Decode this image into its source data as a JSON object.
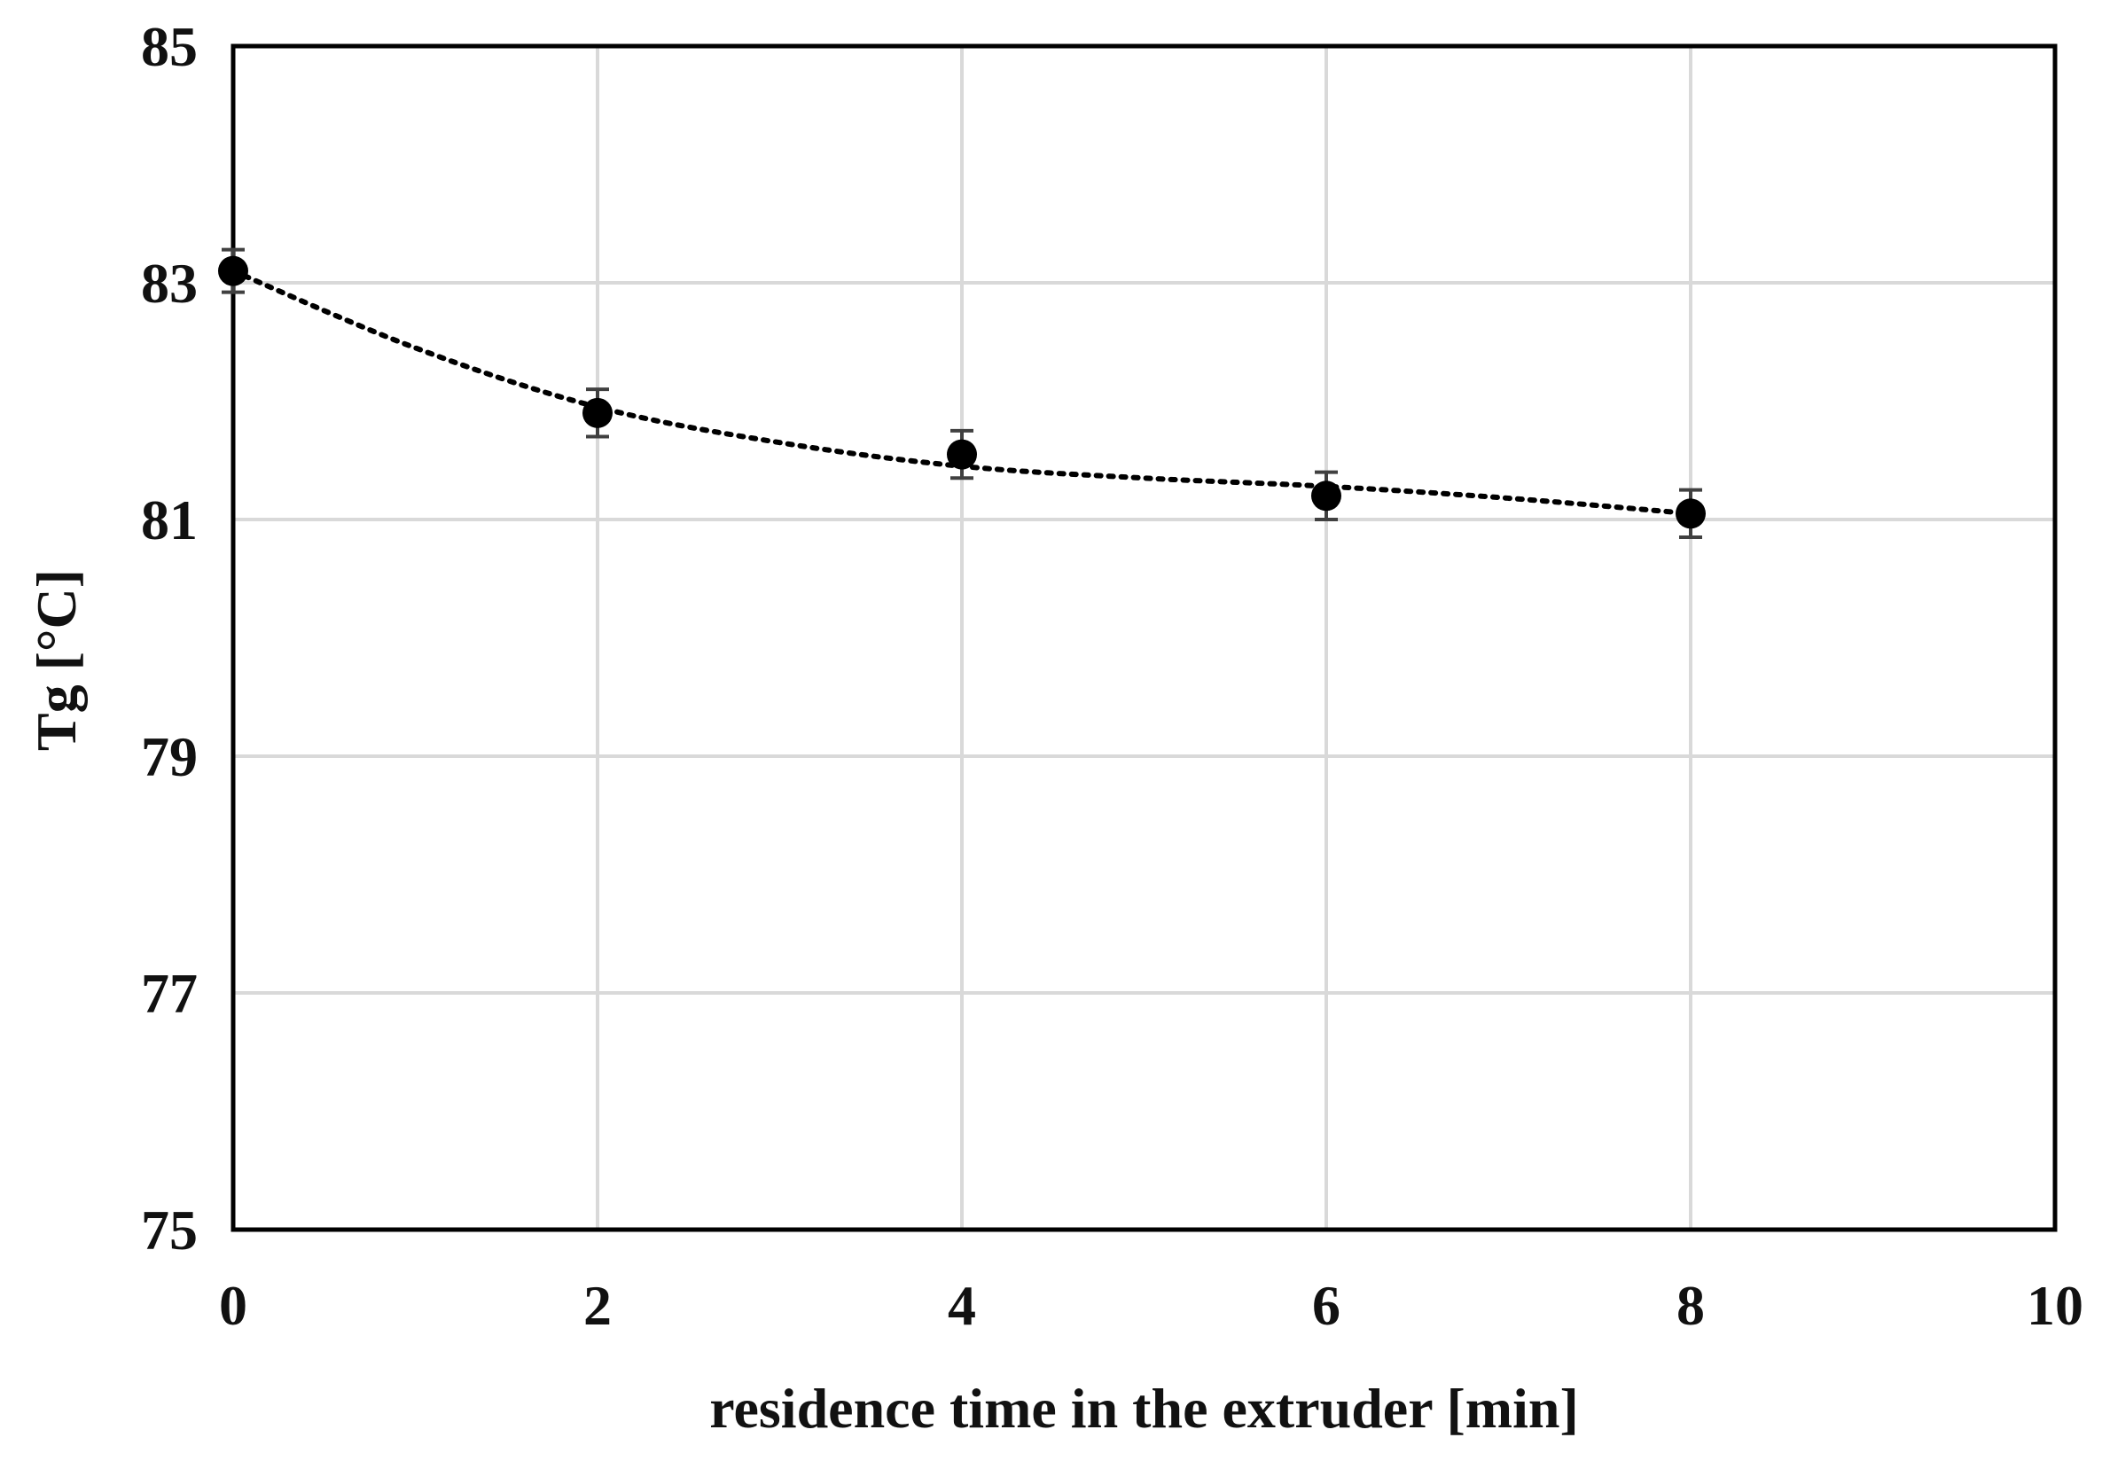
{
  "chart_data": {
    "type": "scatter",
    "title": "",
    "xlabel": "residence time in the extruder [min]",
    "ylabel": "Tg [°C]",
    "xlim": [
      0,
      10
    ],
    "ylim": [
      75,
      85
    ],
    "x_ticks": [
      0,
      2,
      4,
      6,
      8,
      10
    ],
    "y_ticks": [
      75,
      77,
      79,
      81,
      83,
      85
    ],
    "x_tick_labels": [
      "0",
      "2",
      "4",
      "6",
      "8",
      "10"
    ],
    "y_tick_labels": [
      "75",
      "77",
      "79",
      "81",
      "83",
      "85"
    ],
    "grid": true,
    "legend": "none",
    "series": [
      {
        "x": [
          0,
          2,
          4,
          6,
          8
        ],
        "y": [
          83.1,
          81.9,
          81.55,
          81.2,
          81.05
        ],
        "error": [
          0.18,
          0.2,
          0.2,
          0.2,
          0.2
        ],
        "marker": "circle",
        "color": "#000000",
        "trendline": "dotted"
      }
    ],
    "trendline_points": {
      "x": [
        0,
        1,
        2,
        3,
        4,
        5,
        6,
        7,
        8
      ],
      "y": [
        83.1,
        82.45,
        81.95,
        81.65,
        81.45,
        81.35,
        81.28,
        81.18,
        81.05
      ]
    }
  }
}
